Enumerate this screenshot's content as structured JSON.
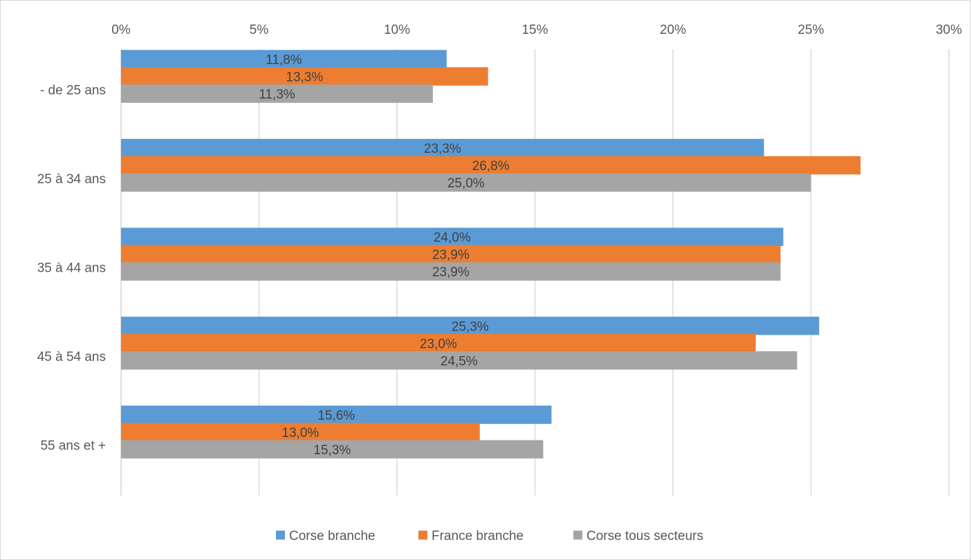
{
  "chart_data": {
    "type": "bar",
    "orientation": "horizontal",
    "categories": [
      "- de 25 ans",
      "25 à 34 ans",
      "35 à 44 ans",
      "45 à 54 ans",
      "55 ans et +"
    ],
    "series": [
      {
        "name": "Corse branche",
        "color": "#5b9bd5",
        "values": [
          11.8,
          23.3,
          24.0,
          25.3,
          15.6
        ],
        "labels": [
          "11,8%",
          "23,3%",
          "24,0%",
          "25,3%",
          "15,6%"
        ]
      },
      {
        "name": "France branche",
        "color": "#ed7d31",
        "values": [
          13.3,
          26.8,
          23.9,
          23.0,
          13.0
        ],
        "labels": [
          "13,3%",
          "26,8%",
          "23,9%",
          "23,0%",
          "13,0%"
        ]
      },
      {
        "name": "Corse tous secteurs",
        "color": "#a5a5a5",
        "values": [
          11.3,
          25.0,
          23.9,
          24.5,
          15.3
        ],
        "labels": [
          "11,3%",
          "25,0%",
          "23,9%",
          "24,5%",
          "15,3%"
        ]
      }
    ],
    "x_ticks": [
      "0%",
      "5%",
      "10%",
      "15%",
      "20%",
      "25%",
      "30%"
    ],
    "xlim": [
      0,
      30
    ],
    "x_axis_position": "top",
    "grid": true,
    "legend_position": "bottom",
    "title": "",
    "xlabel": "",
    "ylabel": ""
  }
}
